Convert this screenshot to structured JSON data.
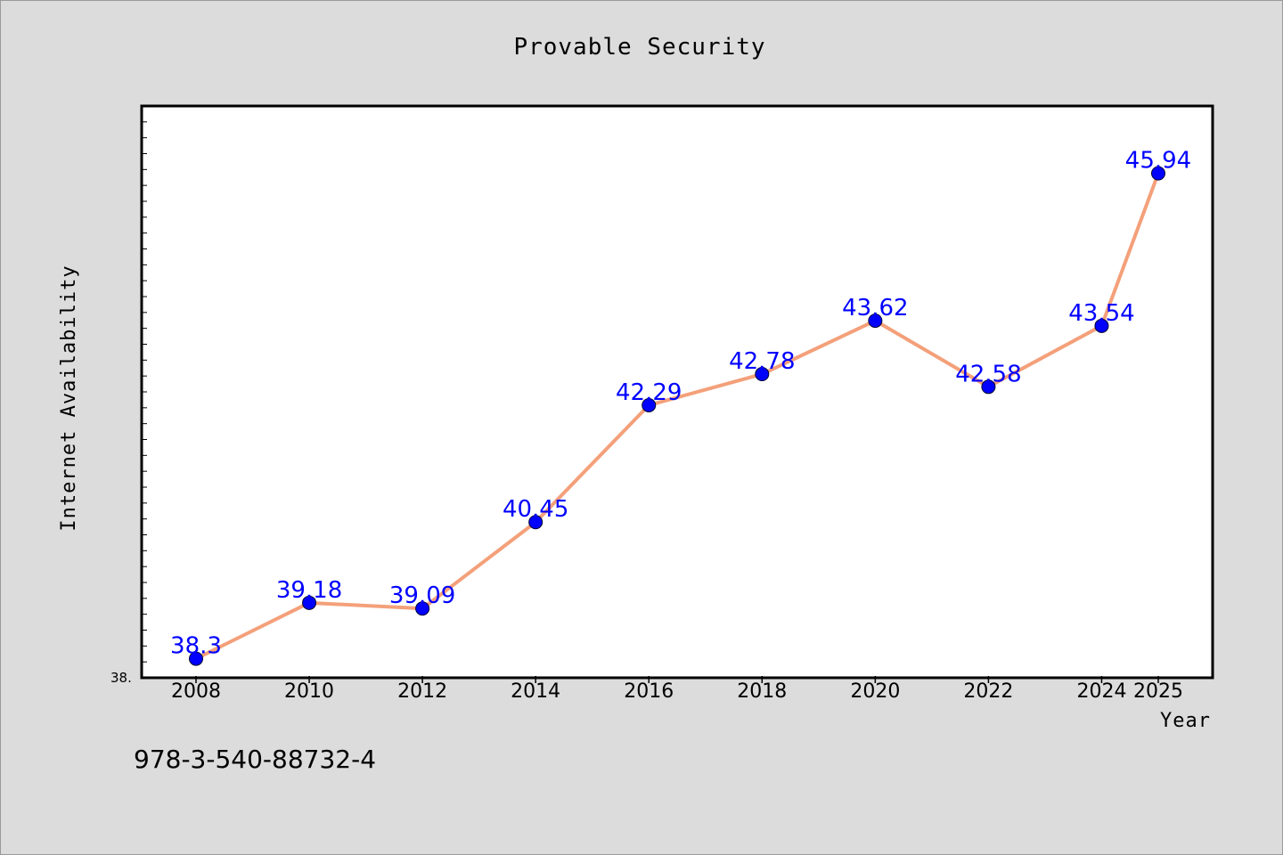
{
  "footer_text": "978-3-540-88732-4",
  "chart_data": {
    "type": "line",
    "title": "Provable Security",
    "xlabel": "Year",
    "ylabel": "Internet Availability",
    "categories": [
      "2008",
      "2010",
      "2012",
      "2014",
      "2016",
      "2018",
      "2020",
      "2022",
      "2024",
      "2025"
    ],
    "values": [
      38.3,
      39.18,
      39.09,
      40.45,
      42.29,
      42.78,
      43.62,
      42.58,
      43.54,
      45.94
    ],
    "value_labels": [
      "38.3",
      "39.18",
      "39.09",
      "40.45",
      "42.29",
      "42.78",
      "43.62",
      "42.58",
      "43.54",
      "45.94"
    ],
    "y_tick_label": "38.",
    "ylim": [
      38.0,
      47.0
    ],
    "grid": false,
    "legend": "none",
    "colors": {
      "line": "#f4a07a",
      "marker": "#0000ff",
      "label": "#0000ff",
      "background": "#dcdcdc",
      "plot_background": "#ffffff"
    }
  }
}
